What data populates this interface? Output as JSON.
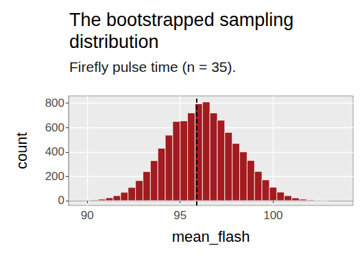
{
  "chart_data": {
    "type": "histogram",
    "title": "The bootstrapped sampling distribution",
    "subtitle": "Firefly pulse time (n = 35).",
    "x_label": "mean_flash",
    "y_label": "count",
    "bins": [
      89.8,
      90.2,
      90.6,
      91.0,
      91.4,
      91.8,
      92.2,
      92.6,
      93.0,
      93.4,
      93.8,
      94.2,
      94.6,
      95.0,
      95.4,
      95.8,
      96.2,
      96.6,
      97.0,
      97.4,
      97.8,
      98.2,
      98.6,
      99.0,
      99.4,
      99.8,
      100.2,
      100.6,
      101.0,
      101.4,
      101.8,
      102.2,
      102.6,
      103.0
    ],
    "values": [
      3,
      6,
      12,
      23,
      40,
      68,
      108,
      164,
      238,
      328,
      430,
      538,
      650,
      655,
      720,
      795,
      810,
      720,
      660,
      560,
      470,
      400,
      330,
      240,
      170,
      110,
      70,
      40,
      22,
      12,
      6,
      3,
      2
    ],
    "color": "#A11B1F",
    "reference_line": 95.9,
    "xlim": [
      89,
      104.3
    ],
    "xticks": [
      90,
      95,
      100
    ],
    "ylim": [
      -40,
      860
    ],
    "yticks": [
      0,
      200,
      400,
      600,
      800
    ],
    "grid": true
  }
}
